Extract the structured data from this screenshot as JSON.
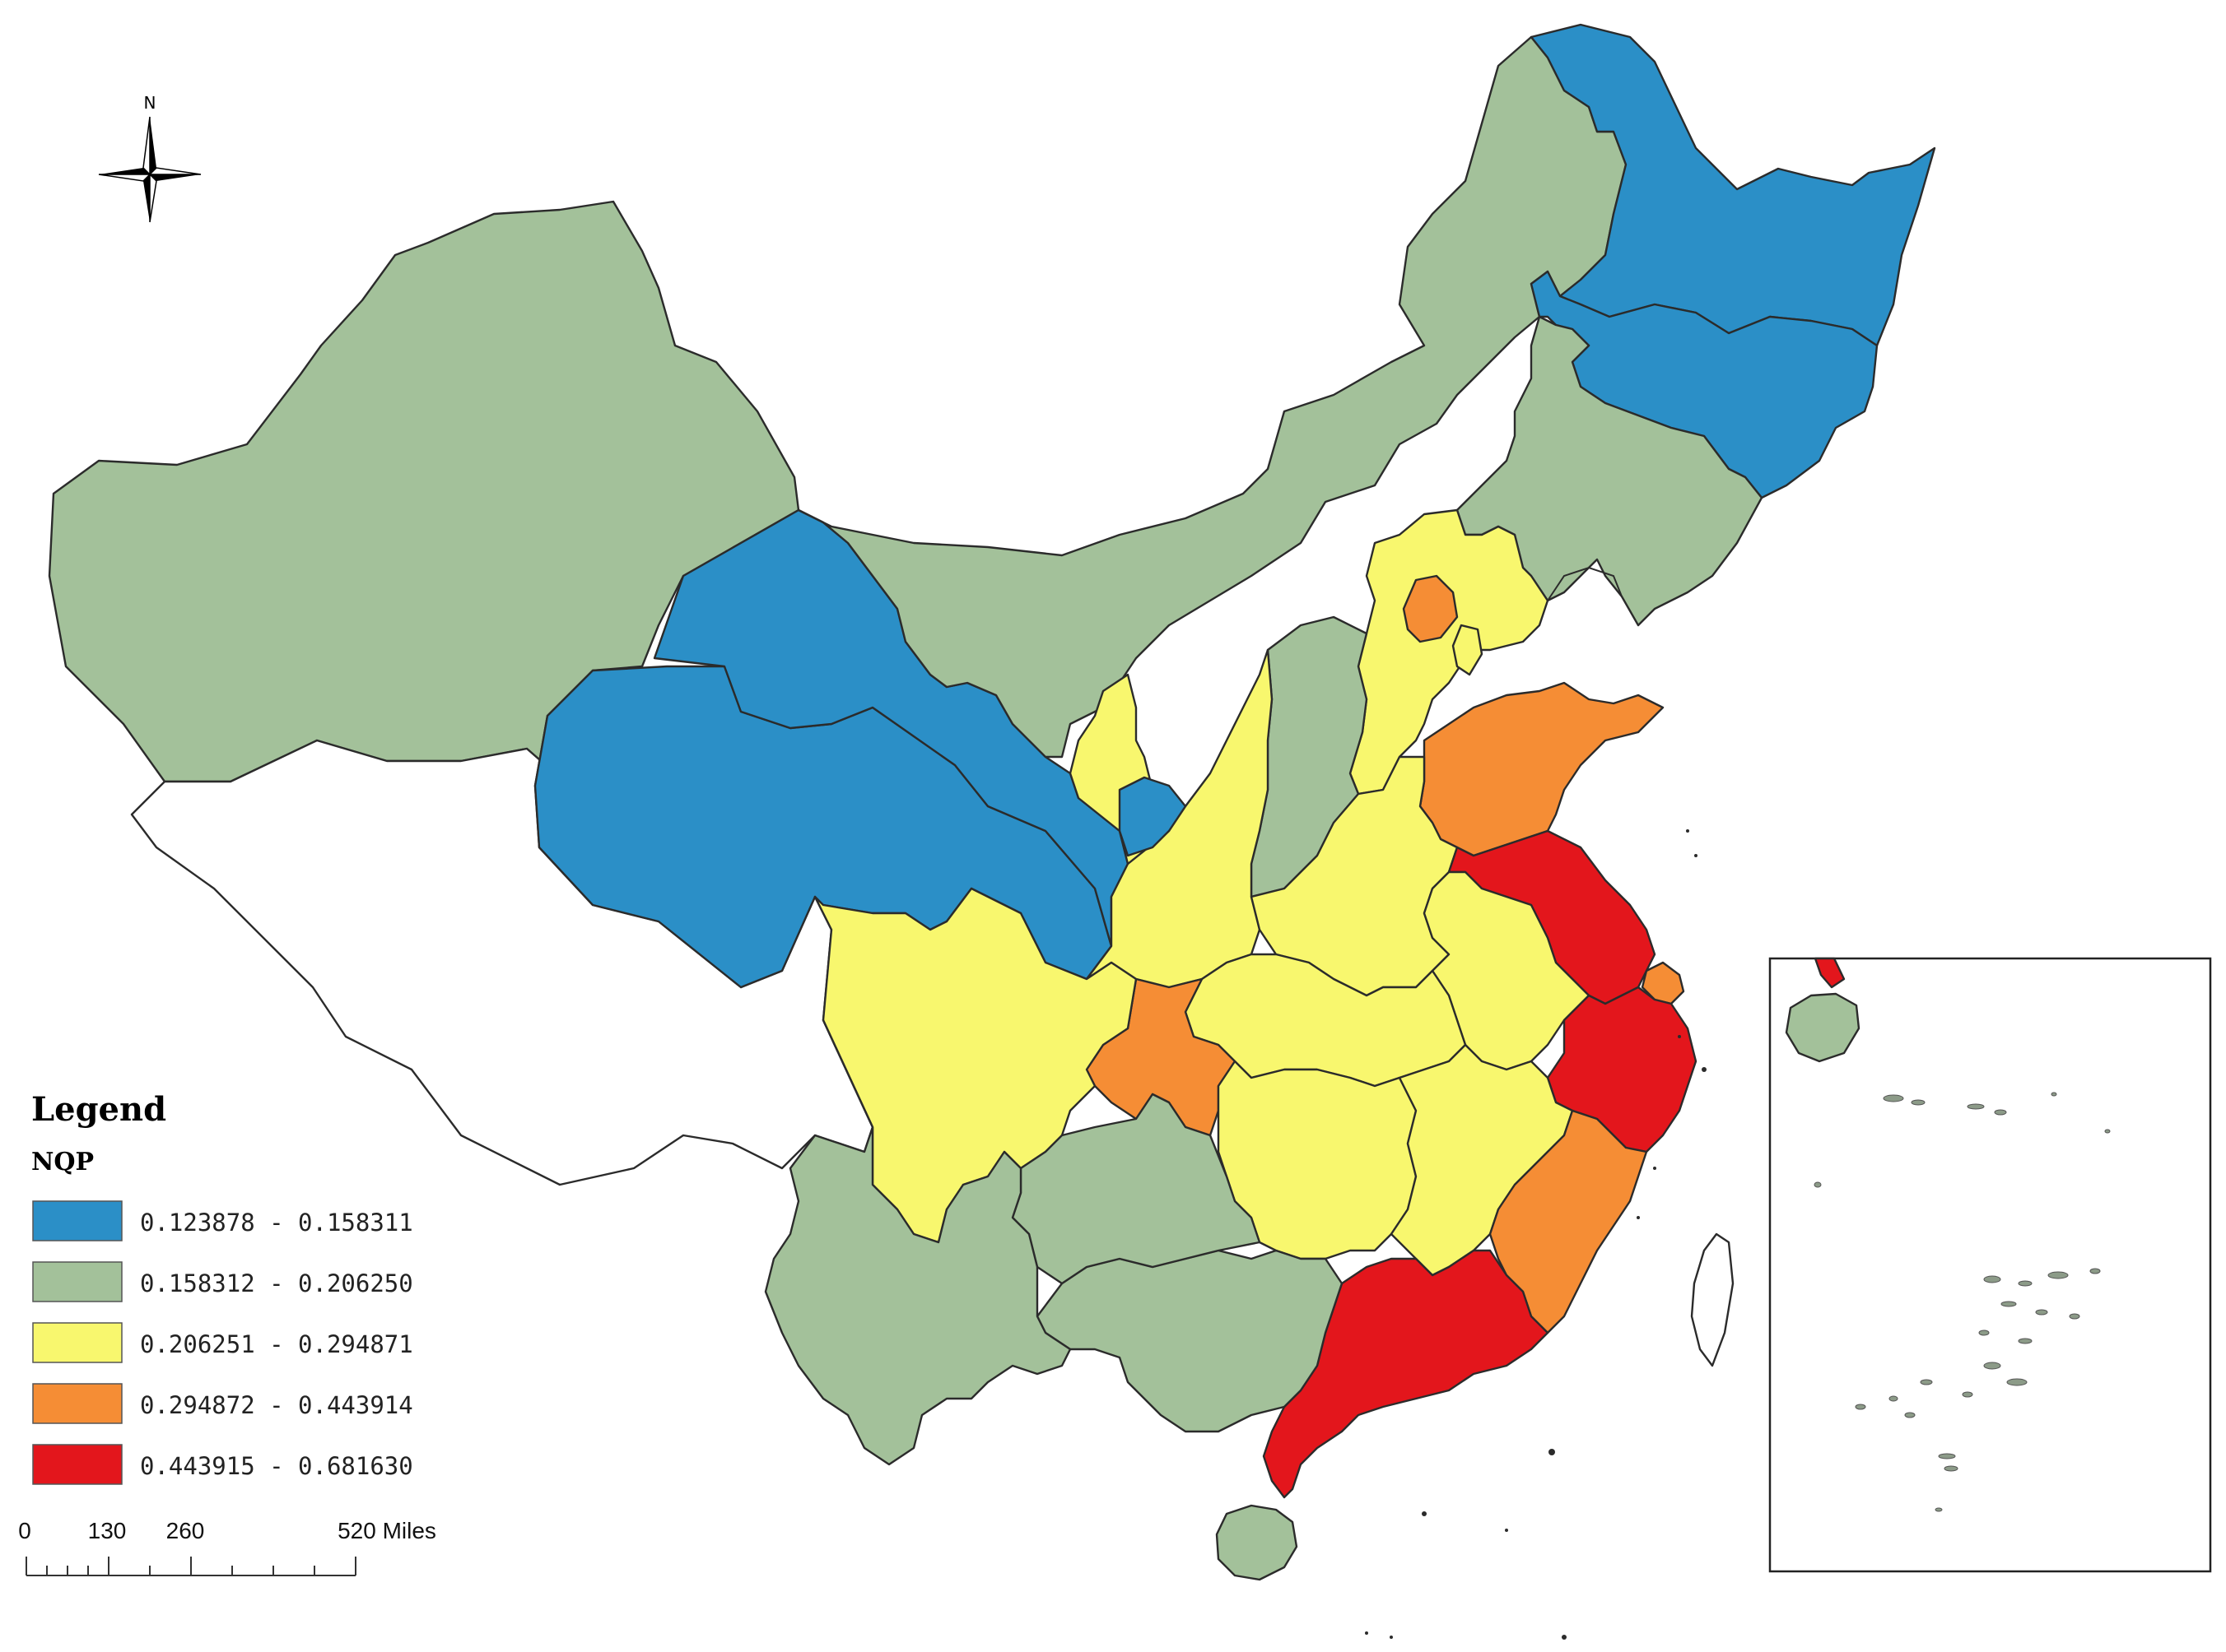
{
  "compass": {
    "north_label": "N"
  },
  "legend": {
    "title": "Legend",
    "field": "NQP",
    "classes": [
      {
        "range": "0.123878 - 0.158311",
        "color": "#2b8fc7"
      },
      {
        "range": "0.158312 - 0.206250",
        "color": "#a3c19a"
      },
      {
        "range": "0.206251 - 0.294871",
        "color": "#f8f76e"
      },
      {
        "range": "0.294872 - 0.443914",
        "color": "#f58d35"
      },
      {
        "range": "0.443915 - 0.681630",
        "color": "#e3161c"
      }
    ]
  },
  "scale_bar": {
    "labels": [
      "0",
      "130",
      "260",
      "520 Miles"
    ]
  },
  "colors": {
    "blue": "#2b8fc7",
    "green": "#a3c19a",
    "yellow": "#f8f76e",
    "orange": "#f58d35",
    "red": "#e3161c",
    "no_data": "#ffffff"
  }
}
